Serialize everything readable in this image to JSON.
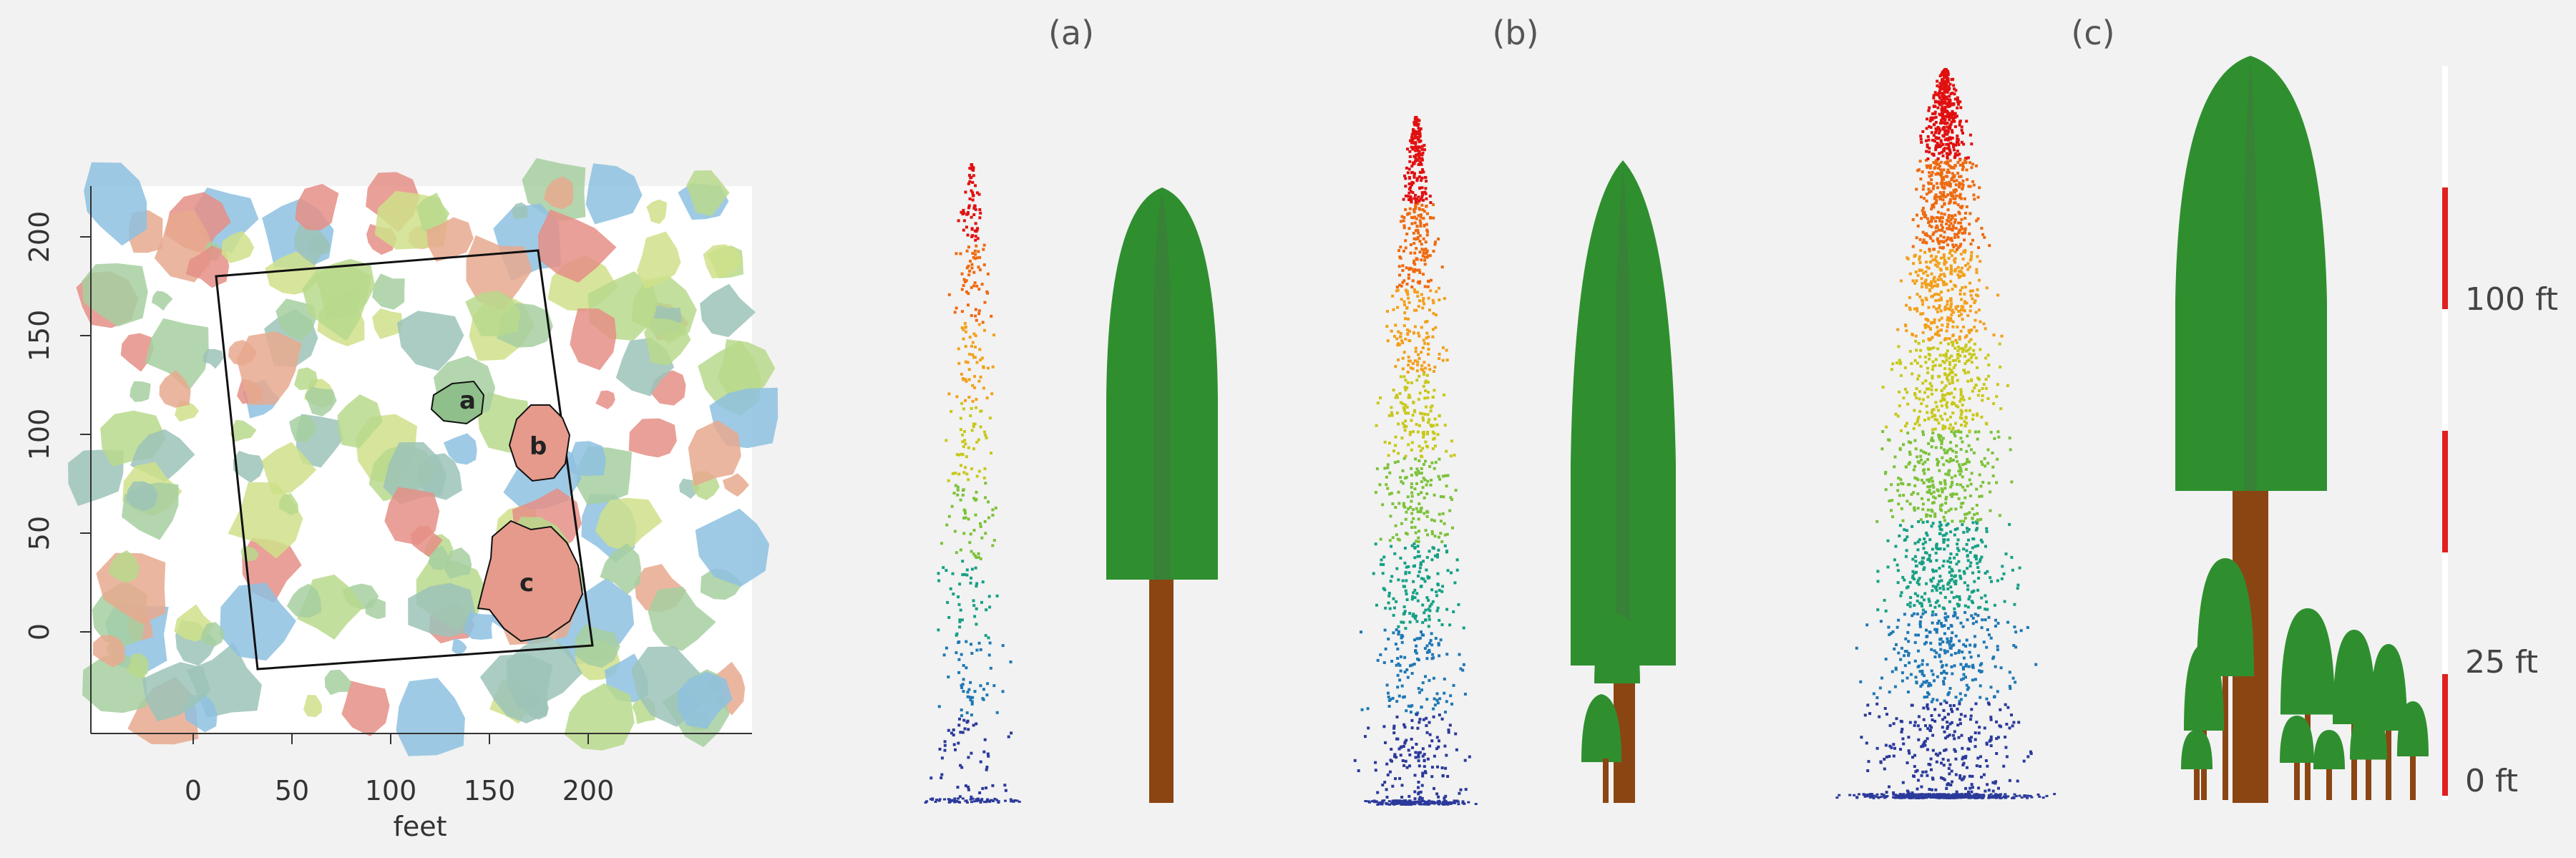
{
  "map": {
    "axis_label": "feet",
    "x_ticks": [
      "0",
      "50",
      "100",
      "150",
      "200"
    ],
    "y_ticks": [
      "0",
      "50",
      "100",
      "150",
      "200"
    ],
    "crowns": [
      {
        "label": "a",
        "color": "#8fbf8a"
      },
      {
        "label": "b",
        "color": "#e59a8c"
      },
      {
        "label": "c",
        "color": "#e59a8c"
      }
    ],
    "palette": [
      "#cfe08a",
      "#a6cfa0",
      "#8ec1e0",
      "#e7a98e",
      "#e58f86",
      "#b9d98c",
      "#9cc3b8"
    ]
  },
  "panels": [
    {
      "label": "(a)",
      "point_density": "sparse"
    },
    {
      "label": "(b)",
      "point_density": "medium"
    },
    {
      "label": "(c)",
      "point_density": "dense"
    }
  ],
  "height_scale": {
    "labels": [
      "100 ft",
      "25 ft",
      "0 ft"
    ],
    "color": "#e02020"
  },
  "colors": {
    "crown": "#2f8f2f",
    "trunk": "#8b4513",
    "gradient": [
      "#2b3a9a",
      "#1f78b4",
      "#16a085",
      "#7cc23a",
      "#c8c81c",
      "#f2a01c",
      "#ee6a10",
      "#e11010"
    ]
  }
}
